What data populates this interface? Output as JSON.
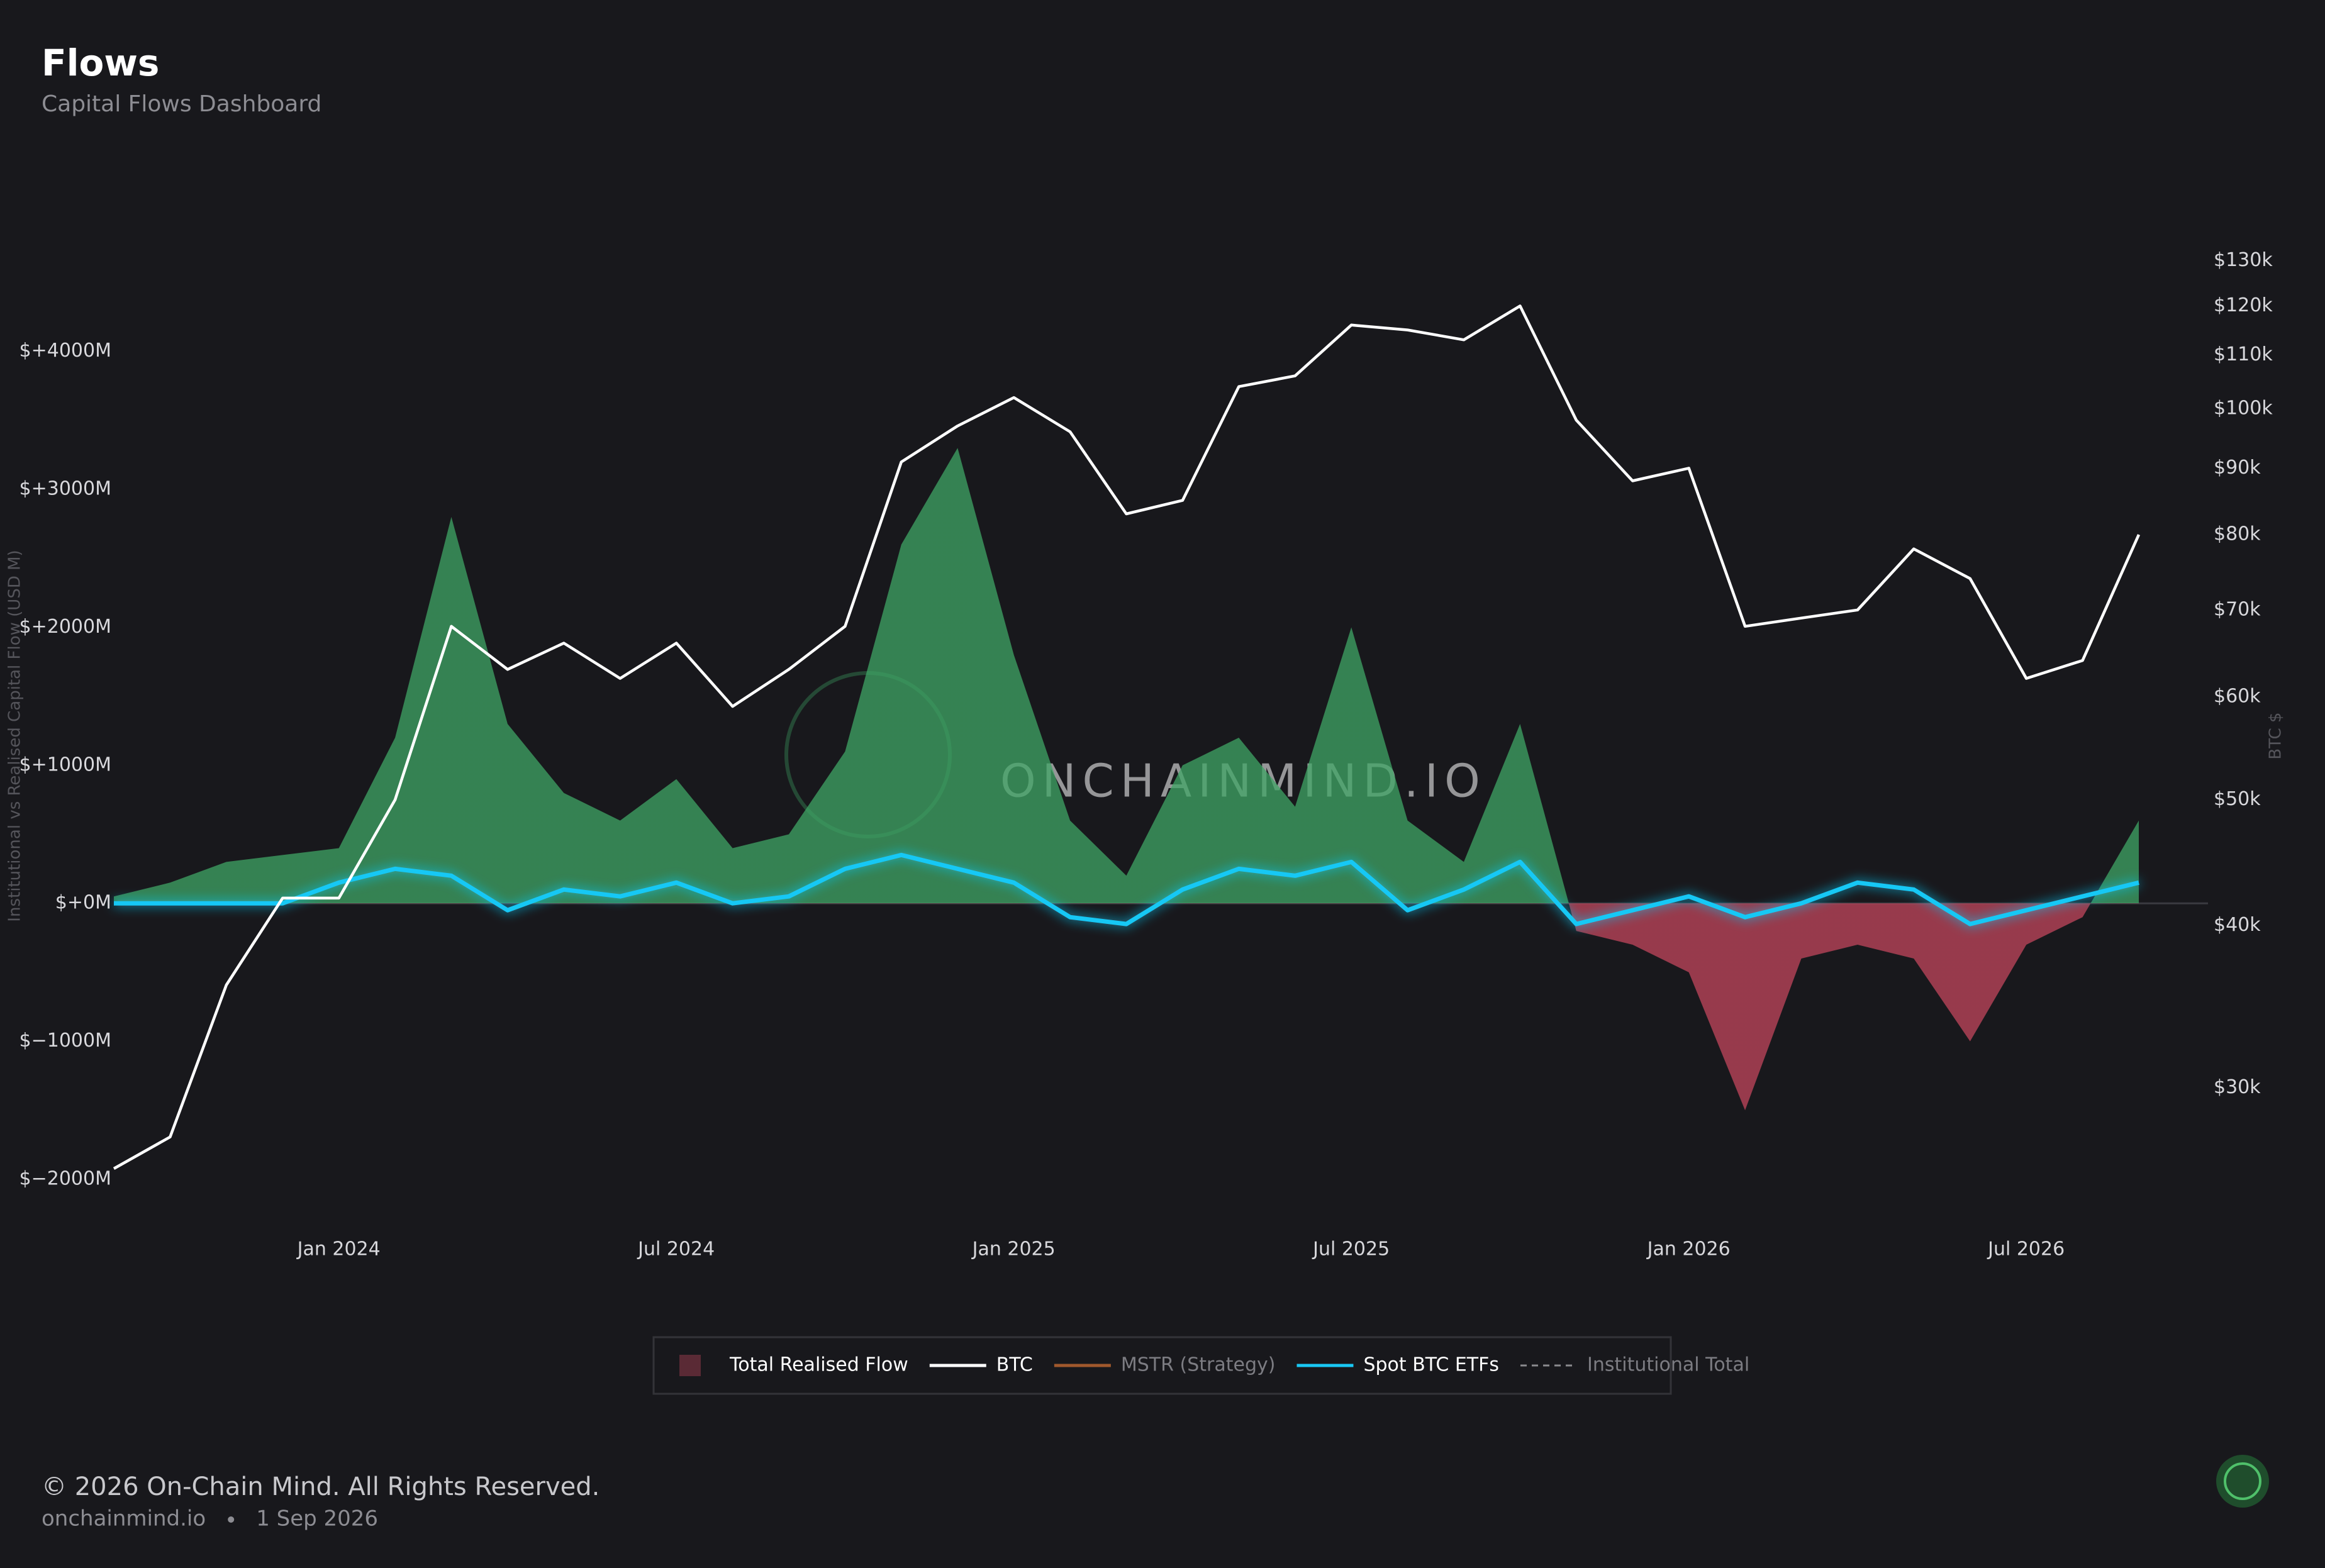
{
  "chart_data": {
    "type": "flows",
    "title": "Flows",
    "subtitle": "Capital Flows Dashboard",
    "ylabel": "Institutional vs Realised Capital Flow (USD M)",
    "y2label": "BTC $",
    "watermark": "ONCHAINMIND.IO",
    "x": [
      "2023-09",
      "2023-10",
      "2023-11",
      "2023-12",
      "2024-01",
      "2024-02",
      "2024-03",
      "2024-04",
      "2024-05",
      "2024-06",
      "2024-07",
      "2024-08",
      "2024-09",
      "2024-10",
      "2024-11",
      "2024-12",
      "2025-01",
      "2025-02",
      "2025-03",
      "2025-04",
      "2025-05",
      "2025-06",
      "2025-07",
      "2025-08",
      "2025-09",
      "2025-10",
      "2025-11",
      "2025-12",
      "2026-01",
      "2026-02",
      "2026-03",
      "2026-04",
      "2026-05",
      "2026-06",
      "2026-07",
      "2026-08",
      "2026-09"
    ],
    "xticks": [
      {
        "value": "2024-01",
        "label": "Jan 2024"
      },
      {
        "value": "2024-07",
        "label": "Jul 2024"
      },
      {
        "value": "2025-01",
        "label": "Jan 2025"
      },
      {
        "value": "2025-07",
        "label": "Jul 2025"
      },
      {
        "value": "2026-01",
        "label": "Jan 2026"
      },
      {
        "value": "2026-07",
        "label": "Jul 2026"
      }
    ],
    "ylim": [
      -2050,
      4700
    ],
    "yticks": [
      {
        "value": 4000,
        "label": "$+4000M"
      },
      {
        "value": 3000,
        "label": "$+3000M"
      },
      {
        "value": 2000,
        "label": "$+2000M"
      },
      {
        "value": 1000,
        "label": "$+1000M"
      },
      {
        "value": 0,
        "label": "$+0M"
      },
      {
        "value": -1000,
        "label": "$−1000M"
      },
      {
        "value": -2000,
        "label": "$−2000M"
      }
    ],
    "y2lim": [
      25200,
      131400
    ],
    "y2log": true,
    "y2ticks": [
      {
        "value": 130000,
        "label": "$130k"
      },
      {
        "value": 120000,
        "label": "$120k"
      },
      {
        "value": 110000,
        "label": "$110k"
      },
      {
        "value": 100000,
        "label": "$100k"
      },
      {
        "value": 90000,
        "label": "$90k"
      },
      {
        "value": 80000,
        "label": "$80k"
      },
      {
        "value": 70000,
        "label": "$70k"
      },
      {
        "value": 60000,
        "label": "$60k"
      },
      {
        "value": 50000,
        "label": "$50k"
      },
      {
        "value": 40000,
        "label": "$40k"
      },
      {
        "value": 30000,
        "label": "$30k"
      }
    ],
    "zero_line": true,
    "series": [
      {
        "name": "Total Realised Flow",
        "kind": "area",
        "color": "#5a2a35",
        "positive_color": "#3fa565",
        "negative_color": "#c2465c",
        "values": [
          50,
          150,
          300,
          350,
          400,
          1200,
          2800,
          1300,
          800,
          600,
          900,
          400,
          500,
          1100,
          2600,
          3300,
          1800,
          600,
          200,
          1000,
          1200,
          700,
          2000,
          600,
          300,
          1300,
          -200,
          -300,
          -500,
          -1500,
          -400,
          -300,
          -400,
          -1000,
          -300,
          -100,
          600
        ]
      },
      {
        "name": "BTC",
        "kind": "line",
        "axis": "y2",
        "color": "#ffffff",
        "values": [
          26000,
          27500,
          36000,
          42000,
          42000,
          50000,
          68000,
          63000,
          66000,
          62000,
          66000,
          59000,
          63000,
          68000,
          91000,
          97000,
          102000,
          96000,
          83000,
          85000,
          104000,
          106000,
          116000,
          115000,
          113000,
          120000,
          98000,
          88000,
          90000,
          68000,
          69000,
          70000,
          78000,
          74000,
          62000,
          64000,
          80000
        ]
      },
      {
        "name": "MSTR (Strategy)",
        "kind": "line",
        "color": "#a0582c",
        "hidden": true
      },
      {
        "name": "Spot BTC ETFs",
        "kind": "glow",
        "color": "#19c8f5",
        "values": [
          0,
          0,
          0,
          0,
          150,
          250,
          200,
          -50,
          100,
          50,
          150,
          0,
          50,
          250,
          350,
          250,
          150,
          -100,
          -150,
          100,
          250,
          200,
          300,
          -50,
          100,
          300,
          -150,
          -50,
          50,
          -100,
          0,
          150,
          100,
          -150,
          -50,
          50,
          150
        ]
      },
      {
        "name": "Institutional Total",
        "kind": "dashed",
        "color": "#8a8a8e",
        "hidden": true
      }
    ]
  },
  "footer": {
    "copyright": "© 2026 On-Chain Mind. All Rights Reserved.",
    "site": "onchainmind.io",
    "date": "1 Sep 2026"
  }
}
